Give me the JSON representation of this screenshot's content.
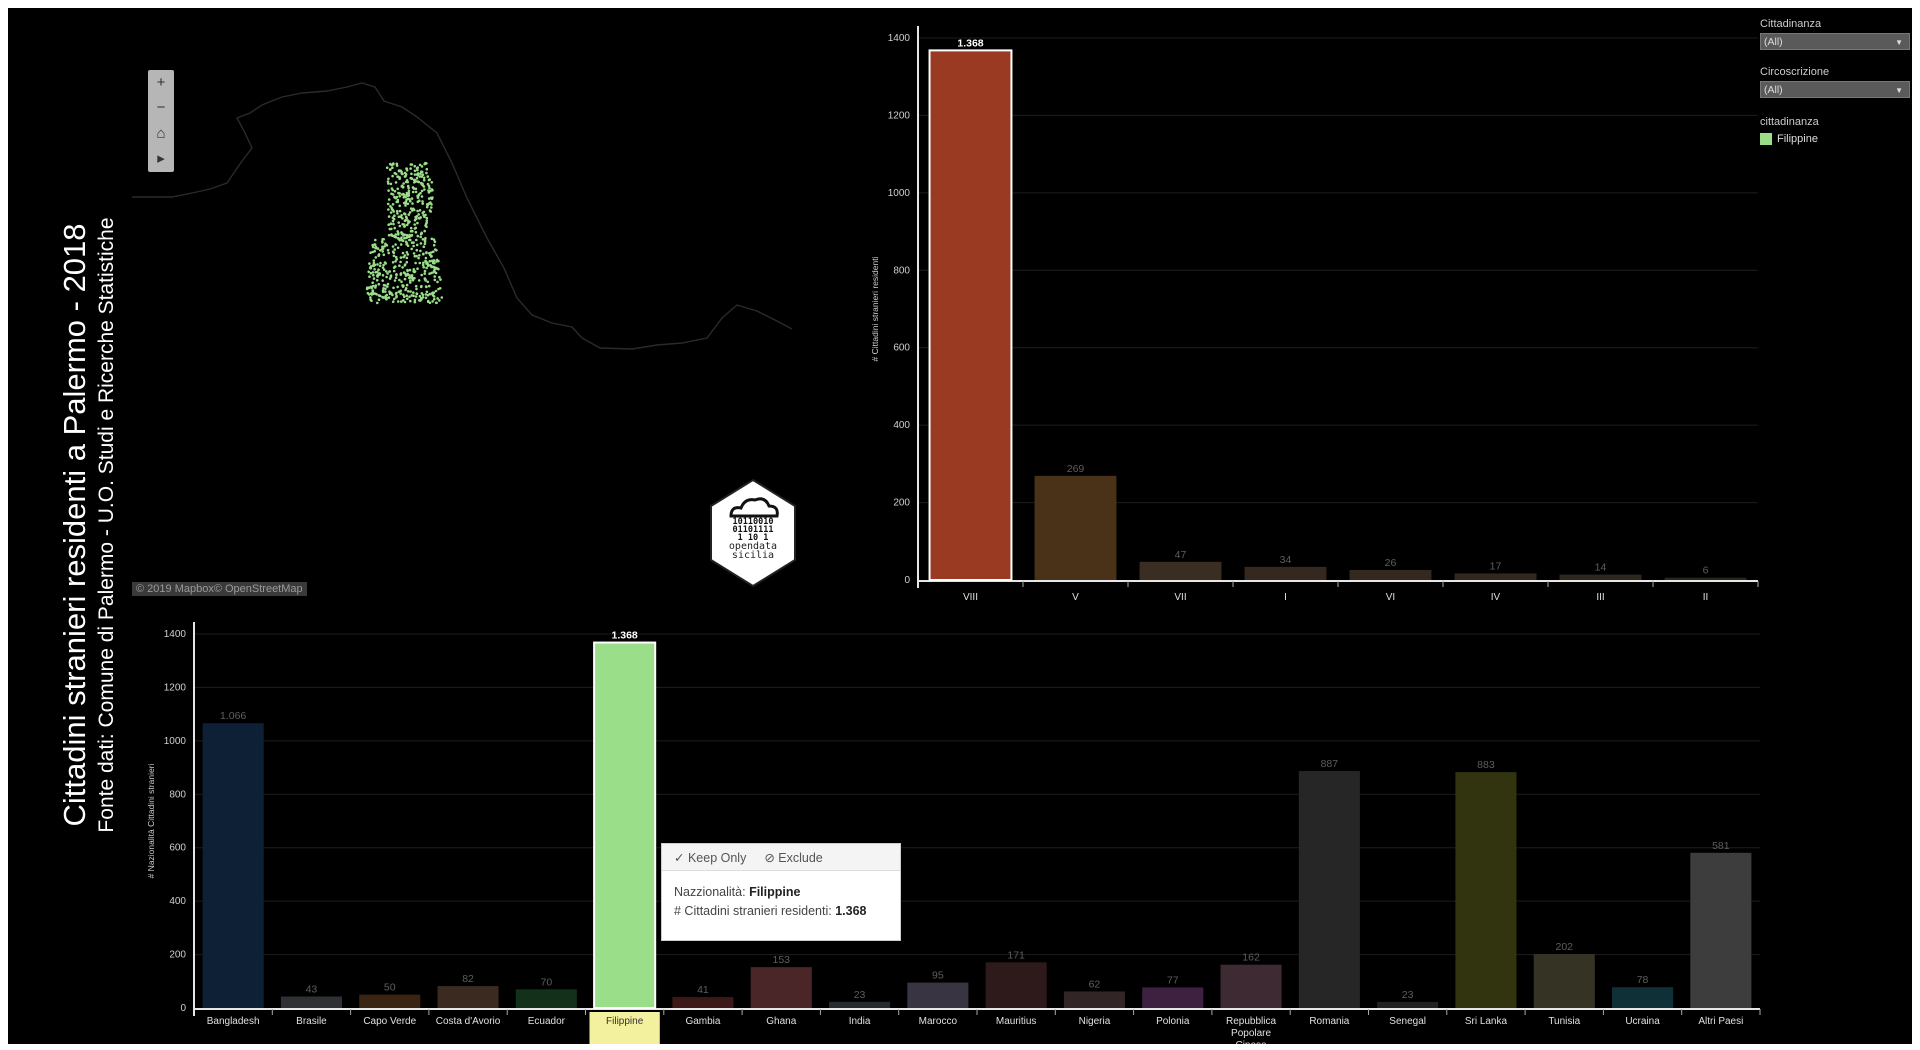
{
  "title": "Cittadini stranieri residenti a Palermo - 2018",
  "subtitle": "Fonte dati: Comune di Palermo - U.O. Studi e Ricerche Statistiche",
  "map": {
    "attribution": "© 2019 Mapbox© OpenStreetMap",
    "controls": [
      "+",
      "−",
      "⌂",
      "▸"
    ],
    "point_color": "#9bde8a"
  },
  "logo": {
    "line1": "10110010",
    "line2": "01101111",
    "line3": "1 10 1",
    "text1": "opendata",
    "text2": "sicilia"
  },
  "filters": {
    "cittadinanza_label": "Cittadinanza",
    "cittadinanza_value": "(All)",
    "circoscrizione_label": "Circoscrizione",
    "circoscrizione_value": "(All)"
  },
  "legend": {
    "title": "cittadinanza",
    "item": "Filippine",
    "color": "#9bde8a"
  },
  "tooltip": {
    "keep_only": "Keep Only",
    "exclude": "Exclude",
    "field1_label": "Nazzionalità:",
    "field1_value": "Filippine",
    "field2_label": "# Cittadini stranieri residenti:",
    "field2_value": "1.368"
  },
  "chart_data": [
    {
      "type": "bar",
      "ylabel": "# Cittadini stranieri residenti",
      "ylim": [
        0,
        1400
      ],
      "yticks": [
        0,
        200,
        400,
        600,
        800,
        1000,
        1200,
        1400
      ],
      "grid": true,
      "categories": [
        "VIII",
        "V",
        "VII",
        "I",
        "VI",
        "IV",
        "III",
        "II"
      ],
      "values": [
        1368,
        269,
        47,
        34,
        26,
        17,
        14,
        6
      ],
      "labels": [
        "1.368",
        "269",
        "47",
        "34",
        "26",
        "17",
        "14",
        "6"
      ],
      "colors": [
        "#9b3a22",
        "#4a3219",
        "#3a2d22",
        "#35291f",
        "#33291f",
        "#30281f",
        "#2e271f",
        "#2b251f"
      ],
      "highlight": 0
    },
    {
      "type": "bar",
      "ylabel": "# Nazionalità Cittadini stranieri",
      "ylim": [
        0,
        1400
      ],
      "yticks": [
        0,
        200,
        400,
        600,
        800,
        1000,
        1200,
        1400
      ],
      "grid": true,
      "categories": [
        "Bangladesh",
        "Brasile",
        "Capo Verde",
        "Costa d'Avorio",
        "Ecuador",
        "Filippine",
        "Gambia",
        "Ghana",
        "India",
        "Marocco",
        "Mauritius",
        "Nigeria",
        "Polonia",
        "Repubblica Popolare Cinese",
        "Romania",
        "Senegal",
        "Sri Lanka",
        "Tunisia",
        "Ucraina",
        "Altri Paesi"
      ],
      "values": [
        1066,
        43,
        50,
        82,
        70,
        1368,
        41,
        153,
        23,
        95,
        171,
        62,
        77,
        162,
        887,
        23,
        883,
        202,
        78,
        581
      ],
      "labels": [
        "1.066",
        "43",
        "50",
        "82",
        "70",
        "1.368",
        "41",
        "153",
        "23",
        "95",
        "171",
        "62",
        "77",
        "162",
        "887",
        "23",
        "883",
        "202",
        "78",
        "581"
      ],
      "colors": [
        "#0e2036",
        "#2e3033",
        "#3a2413",
        "#3b2a1f",
        "#12301a",
        "#9bde8a",
        "#3c1818",
        "#4a2628",
        "#262a2e",
        "#383441",
        "#2e1a1a",
        "#322525",
        "#3e2140",
        "#3e2a32",
        "#262626",
        "#222",
        "#32330f",
        "#353424",
        "#0e3036",
        "#3d3d3d"
      ],
      "highlight": 5
    }
  ]
}
